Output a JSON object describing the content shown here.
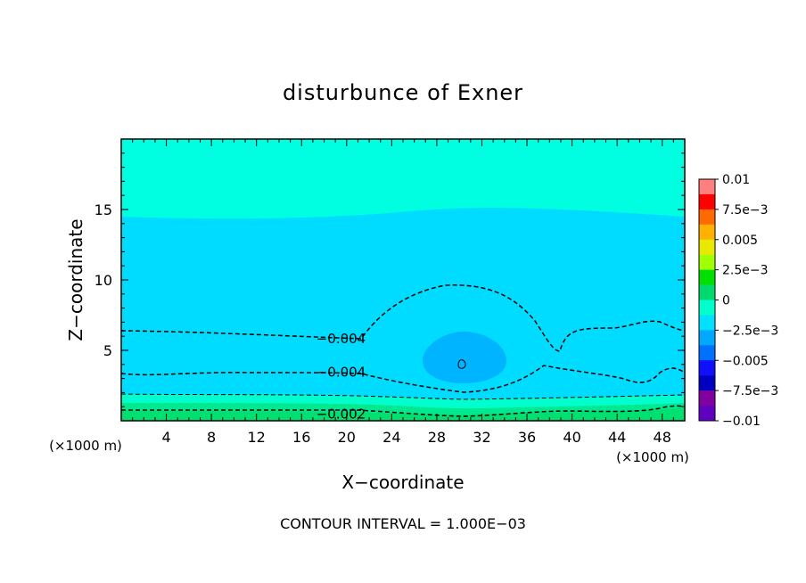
{
  "chart_data": {
    "type": "contour",
    "title": "disturbunce of Exner",
    "xlabel": "X−coordinate",
    "ylabel": "Z−coordinate",
    "x_unit_left": "(×1000 m)",
    "x_unit_right": "(×1000 m)",
    "footer": "CONTOUR INTERVAL = 1.000E−03",
    "xlim": [
      0,
      50
    ],
    "ylim": [
      0,
      20
    ],
    "x_ticks": [
      4,
      8,
      12,
      16,
      20,
      24,
      28,
      32,
      36,
      40,
      44,
      48
    ],
    "x_tick_labels": [
      "4",
      "8",
      "12",
      "16",
      "20",
      "24",
      "28",
      "32",
      "36",
      "40",
      "44",
      "48"
    ],
    "y_ticks": [
      5,
      10,
      15
    ],
    "y_tick_labels": [
      "5",
      "10",
      "15"
    ],
    "contour_labels": [
      {
        "text": "−0.004",
        "x": 19.5,
        "z": 5.9
      },
      {
        "text": "−0.004",
        "x": 19.5,
        "z": 3.5
      },
      {
        "text": "−0.002",
        "x": 19.5,
        "z": 0.55
      }
    ],
    "colorbar": {
      "levels": [
        0.01,
        0.0075,
        0.005,
        0.0025,
        0,
        -0.0025,
        -0.005,
        -0.0075,
        -0.01
      ],
      "labels": [
        "0.01",
        "7.5e−3",
        "0.005",
        "2.5e−3",
        "0",
        "−2.5e−3",
        "−0.005",
        "−7.5e−3",
        "−0.01"
      ],
      "colors": [
        "#ff7f7f",
        "#ff0000",
        "#ff6a00",
        "#ffb000",
        "#e8e800",
        "#a0ff00",
        "#00e000",
        "#00d870",
        "#00ffcc",
        "#00e0ff",
        "#00a8ff",
        "#0070ff",
        "#1010ff",
        "#0000c0",
        "#8000a0",
        "#6000c0"
      ]
    },
    "fill_colors": {
      "upper": "#00ffe0",
      "mid": "#00dcff",
      "core": "#00b4ff",
      "lower1": "#00ffcc",
      "lower2": "#00e890",
      "bottom": "#00e070"
    }
  }
}
